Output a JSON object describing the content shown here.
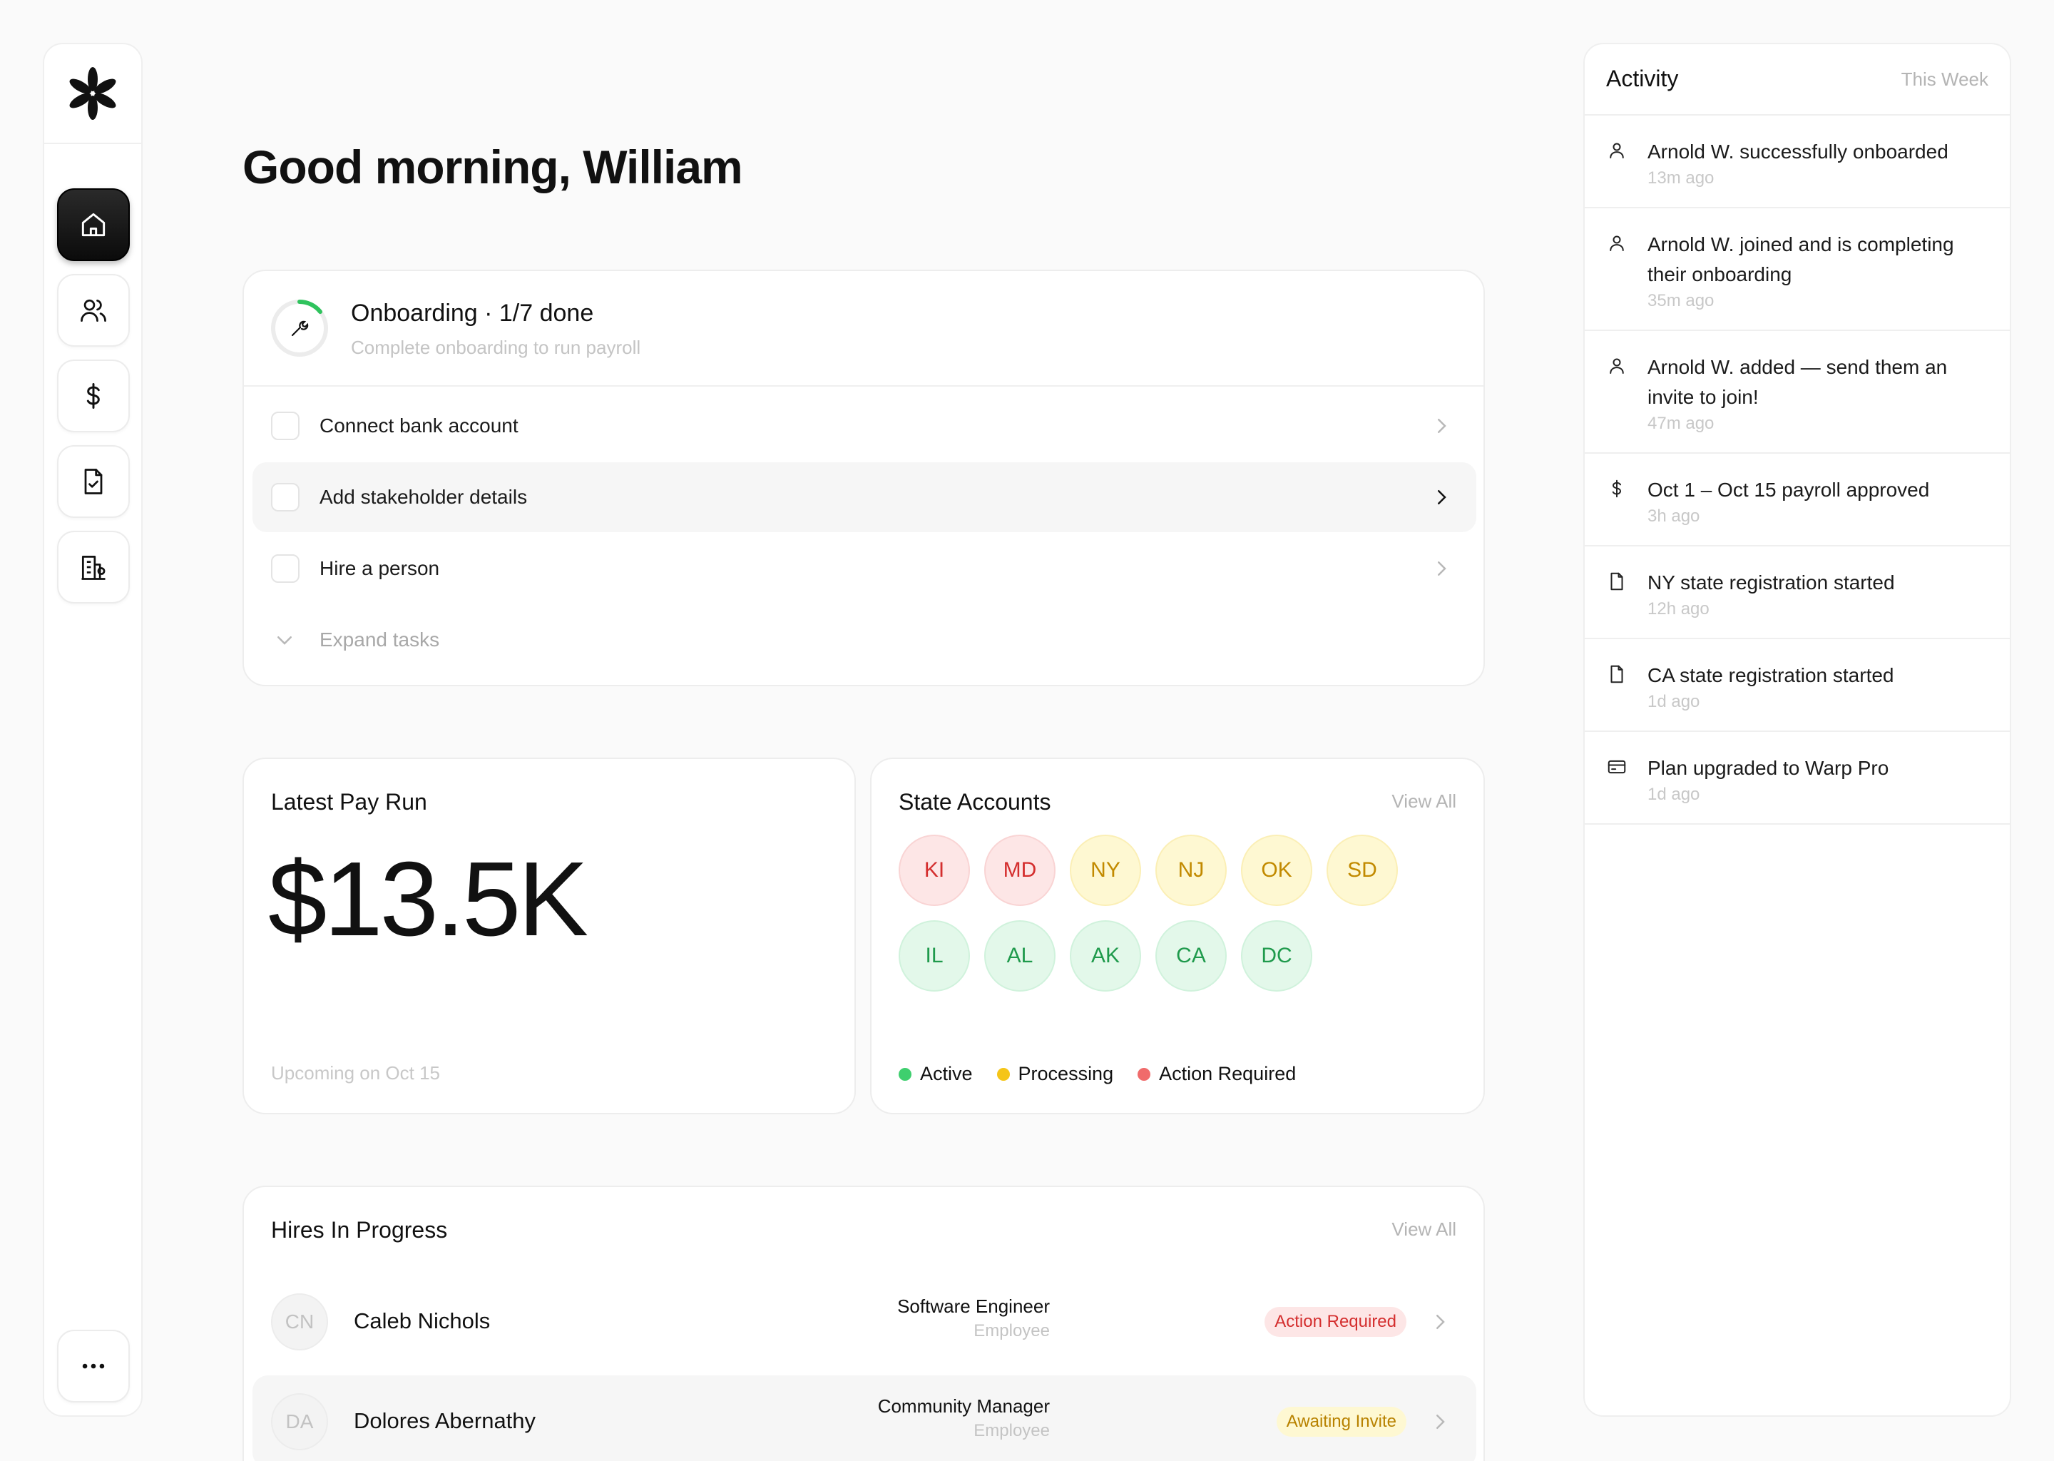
{
  "greeting": "Good morning, William",
  "onboarding": {
    "title": "Onboarding · 1/7 done",
    "subtitle": "Complete onboarding to run payroll",
    "progress": 0.143,
    "tasks": [
      {
        "label": "Connect bank account"
      },
      {
        "label": "Add stakeholder details"
      },
      {
        "label": "Hire a person"
      }
    ],
    "expand_label": "Expand tasks"
  },
  "pay_run": {
    "title": "Latest Pay Run",
    "amount": "$13.5K",
    "footer": "Upcoming on Oct 15"
  },
  "state_accounts": {
    "title": "State Accounts",
    "view_all": "View All",
    "states": [
      {
        "code": "KI",
        "status": "action"
      },
      {
        "code": "MD",
        "status": "action"
      },
      {
        "code": "NY",
        "status": "processing"
      },
      {
        "code": "NJ",
        "status": "processing"
      },
      {
        "code": "OK",
        "status": "processing"
      },
      {
        "code": "SD",
        "status": "processing"
      },
      {
        "code": "IL",
        "status": "active"
      },
      {
        "code": "AL",
        "status": "active"
      },
      {
        "code": "AK",
        "status": "active"
      },
      {
        "code": "CA",
        "status": "active"
      },
      {
        "code": "DC",
        "status": "active"
      }
    ],
    "legend": {
      "active": "Active",
      "processing": "Processing",
      "action": "Action Required"
    },
    "colors": {
      "active": "#3ecf6e",
      "processing": "#f5c518",
      "action": "#f06b6b"
    }
  },
  "hires": {
    "title": "Hires In Progress",
    "view_all": "View All",
    "rows": [
      {
        "initials": "CN",
        "name": "Caleb Nichols",
        "role": "Software Engineer",
        "type": "Employee",
        "status": "Action Required"
      },
      {
        "initials": "DA",
        "name": "Dolores Abernathy",
        "role": "Community Manager",
        "type": "Employee",
        "status": "Awaiting Invite"
      }
    ]
  },
  "activity": {
    "title": "Activity",
    "range": "This Week",
    "items": [
      {
        "icon": "user-icon",
        "text": "Arnold W. successfully onboarded",
        "time": "13m ago"
      },
      {
        "icon": "user-icon",
        "text": "Arnold W. joined and is completing their onboarding",
        "time": "35m ago"
      },
      {
        "icon": "user-icon",
        "text": "Arnold W. added — send them an invite to join!",
        "time": "47m ago"
      },
      {
        "icon": "dollar-icon",
        "text": "Oct 1 – Oct 15 payroll approved",
        "time": "3h ago"
      },
      {
        "icon": "document-icon",
        "text": "NY state registration started",
        "time": "12h ago"
      },
      {
        "icon": "document-icon",
        "text": "CA state registration started",
        "time": "1d ago"
      },
      {
        "icon": "card-icon",
        "text": "Plan upgraded to Warp Pro",
        "time": "1d ago"
      }
    ]
  },
  "sidebar": {
    "items": [
      "home-icon",
      "people-icon",
      "dollar-icon",
      "document-check-icon",
      "building-icon",
      "more-icon"
    ]
  }
}
